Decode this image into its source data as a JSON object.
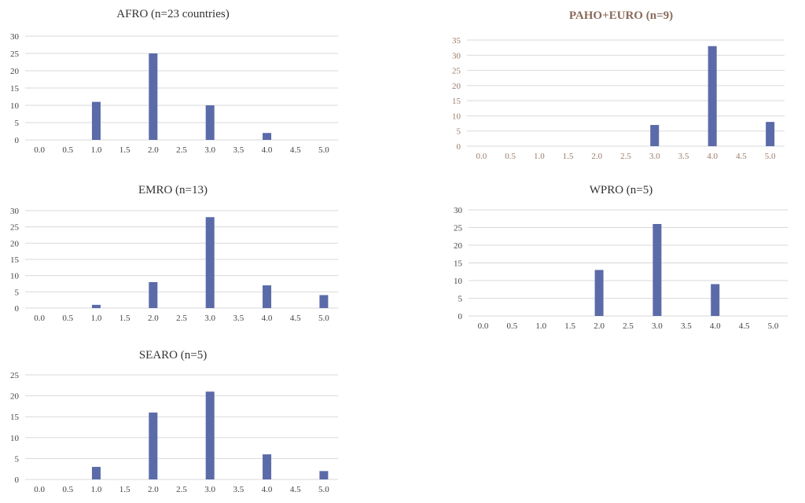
{
  "chart_data": [
    {
      "type": "bar",
      "title": "AFRO (n=23 countries)",
      "categories": [
        "0.0",
        "0.5",
        "1.0",
        "1.5",
        "2.0",
        "2.5",
        "3.0",
        "3.5",
        "4.0",
        "4.5",
        "5.0"
      ],
      "values": [
        0,
        0,
        11,
        0,
        25,
        0,
        10,
        0,
        2,
        0,
        0
      ],
      "yticks": [
        "0",
        "5",
        "10",
        "15",
        "20",
        "25",
        "30"
      ],
      "ylim": [
        0,
        30
      ],
      "grid": true,
      "bar_color": "#5b6aa8"
    },
    {
      "type": "bar",
      "title": "PAHO+EURO (n=9)",
      "categories": [
        "0.0",
        "0.5",
        "1.0",
        "1.5",
        "2.0",
        "2.5",
        "3.0",
        "3.5",
        "4.0",
        "4.5",
        "5.0"
      ],
      "values": [
        0,
        0,
        0,
        0,
        0,
        0,
        7,
        0,
        33,
        0,
        8
      ],
      "yticks": [
        "0",
        "5",
        "10",
        "15",
        "20",
        "25",
        "30",
        "35"
      ],
      "ylim": [
        0,
        35
      ],
      "grid": true,
      "bar_color": "#5b6aa8"
    },
    {
      "type": "bar",
      "title": "EMRO (n=13)",
      "categories": [
        "0.0",
        "0.5",
        "1.0",
        "1.5",
        "2.0",
        "2.5",
        "3.0",
        "3.5",
        "4.0",
        "4.5",
        "5.0"
      ],
      "values": [
        0,
        0,
        1,
        0,
        8,
        0,
        28,
        0,
        7,
        0,
        4
      ],
      "yticks": [
        "0",
        "5",
        "10",
        "15",
        "20",
        "25",
        "30"
      ],
      "ylim": [
        0,
        30
      ],
      "grid": true,
      "bar_color": "#5b6aa8"
    },
    {
      "type": "bar",
      "title": "WPRO (n=5)",
      "categories": [
        "0.0",
        "0.5",
        "1.0",
        "1.5",
        "2.0",
        "2.5",
        "3.0",
        "3.5",
        "4.0",
        "4.5",
        "5.0"
      ],
      "values": [
        0,
        0,
        0,
        0,
        13,
        0,
        26,
        0,
        9,
        0,
        0
      ],
      "yticks": [
        "0",
        "5",
        "10",
        "15",
        "20",
        "25",
        "30"
      ],
      "ylim": [
        0,
        30
      ],
      "grid": true,
      "bar_color": "#5b6aa8"
    },
    {
      "type": "bar",
      "title": "SEARO (n=5)",
      "categories": [
        "0.0",
        "0.5",
        "1.0",
        "1.5",
        "2.0",
        "2.5",
        "3.0",
        "3.5",
        "4.0",
        "4.5",
        "5.0"
      ],
      "values": [
        0,
        0,
        3,
        0,
        16,
        0,
        21,
        0,
        6,
        0,
        2
      ],
      "yticks": [
        "0",
        "5",
        "10",
        "15",
        "20",
        "25"
      ],
      "ylim": [
        0,
        25
      ],
      "grid": true,
      "bar_color": "#5b6aa8"
    }
  ]
}
